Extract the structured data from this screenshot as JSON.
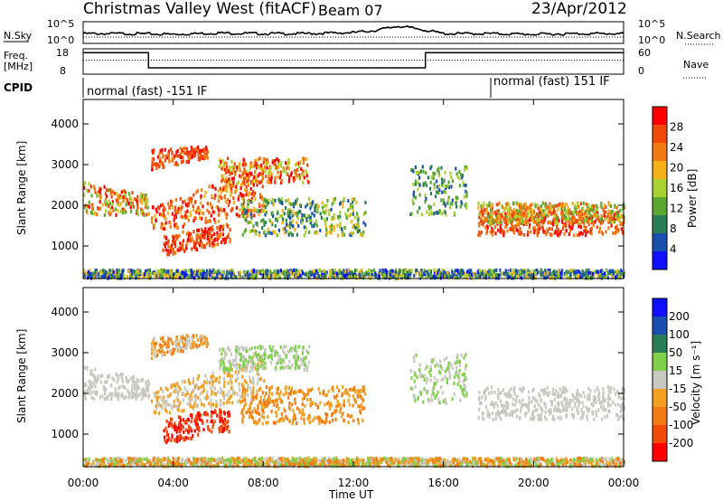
{
  "header": {
    "title": "Christmas Valley West (fitACF)",
    "beam": "Beam 07",
    "date": "23/Apr/2012"
  },
  "panel_labels": {
    "nsky": "N.Sky",
    "nsearch": "N.Search",
    "freq_a": "Freq.",
    "freq_b": "[MHz]",
    "nave": "Nave",
    "cpid": "CPID"
  },
  "cpid_modes": [
    "normal (fast) -151 IF",
    "normal (fast) 151 IF"
  ],
  "colors": {
    "power": [
      "#1010ff",
      "#1a4fb0",
      "#2b7d55",
      "#5aa832",
      "#a8d230",
      "#f3b21a",
      "#f37a10",
      "#f24a0b",
      "#ff0000"
    ],
    "velocity": [
      "#ff0000",
      "#f24a0b",
      "#f37a10",
      "#f3a020",
      "#c8c8c0",
      "#7fd04a",
      "#2b7d55",
      "#1a4fb0",
      "#1010ff"
    ]
  },
  "chart_data": [
    {
      "type": "line",
      "name": "noise",
      "ylabel_left": "N.Sky",
      "ylabel_right": "N.Search",
      "ytick_left": [
        "10^5",
        "10^0"
      ],
      "ytick_right": [
        "10^5",
        "10^0"
      ],
      "xlim": [
        0,
        24
      ],
      "level_x": [
        0,
        2,
        4,
        6,
        8,
        10,
        12,
        13,
        14,
        15,
        16,
        18,
        20,
        22,
        24
      ],
      "level_y": [
        0.45,
        0.45,
        0.42,
        0.48,
        0.45,
        0.45,
        0.5,
        0.6,
        0.8,
        0.65,
        0.45,
        0.45,
        0.42,
        0.45,
        0.45
      ]
    },
    {
      "type": "line",
      "name": "frequency",
      "ylabel_left": "Freq. [MHz]",
      "ylabel_right": "Nave",
      "ytick_left": [
        "18",
        "8"
      ],
      "ytick_right": [
        "60",
        "0"
      ],
      "xlim": [
        0,
        24
      ],
      "freq_x": [
        0,
        2.9,
        2.9,
        15.2,
        15.2,
        24
      ],
      "freq_y": [
        0.85,
        0.85,
        0.25,
        0.25,
        0.85,
        0.85
      ],
      "nave_y": 0.55
    },
    {
      "type": "heatmap",
      "name": "power",
      "ylabel": "Slant Range [km]",
      "yticks": [
        1000,
        2000,
        3000,
        4000
      ],
      "ylim": [
        200,
        4600
      ],
      "colorbar_label": "Power [dB]",
      "colorbar_ticks": [
        "28",
        "24",
        "20",
        "16",
        "12",
        "8",
        "4"
      ],
      "xlim": [
        0,
        24
      ]
    },
    {
      "type": "heatmap",
      "name": "velocity",
      "ylabel": "Slant Range [km]",
      "yticks": [
        1000,
        2000,
        3000,
        4000
      ],
      "ylim": [
        200,
        4600
      ],
      "colorbar_label": "Velocity [m s⁻¹]",
      "colorbar_ticks": [
        "200",
        "100",
        "50",
        "15",
        "-15",
        "-50",
        "-100",
        "-200"
      ],
      "xlim": [
        0,
        24
      ]
    }
  ],
  "xaxis": {
    "ticks": [
      "00:00",
      "04:00",
      "08:00",
      "12:00",
      "16:00",
      "20:00",
      "00:00"
    ],
    "label": "Time UT"
  }
}
